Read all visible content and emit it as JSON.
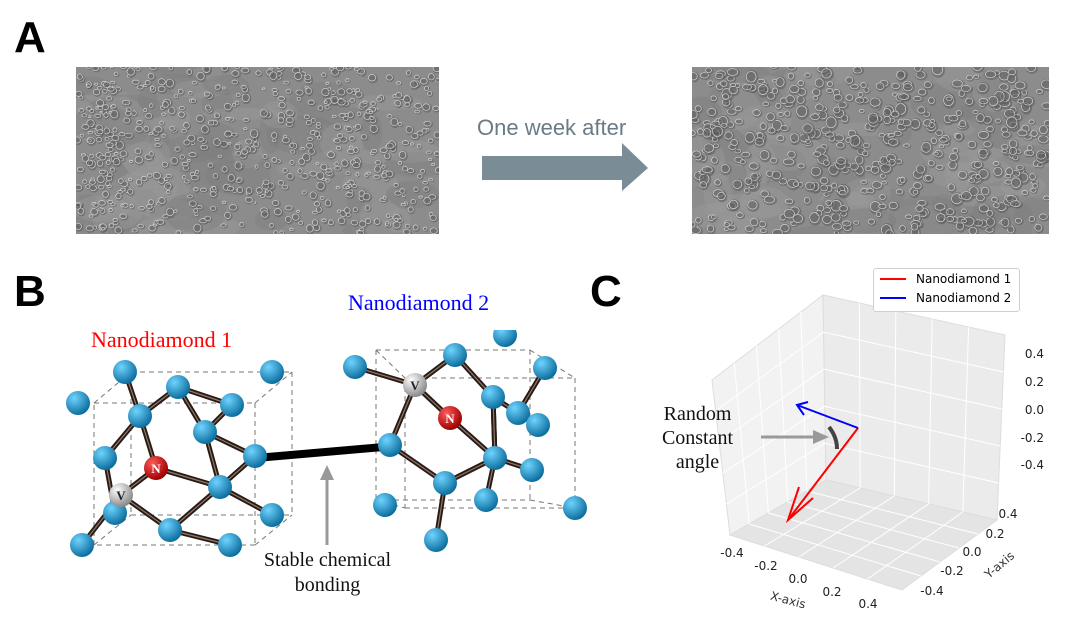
{
  "panels": {
    "a": "A",
    "b": "B",
    "c": "C"
  },
  "panel_a": {
    "arrow_label": "One week after"
  },
  "panel_b": {
    "nd1_label": "Nanodiamond 1",
    "nd2_label": "Nanodiamond 2",
    "bond_note_line1": "Stable chemical",
    "bond_note_line2": "bonding",
    "atom_n": "N",
    "atom_v": "V"
  },
  "panel_c": {
    "angle_note_line1": "Random",
    "angle_note_line2": "Constant",
    "angle_note_line3": "angle",
    "legend": [
      {
        "name": "Nanodiamond 1",
        "color": "#ff0000"
      },
      {
        "name": "Nanodiamond 2",
        "color": "#0000ff"
      }
    ],
    "x_axis_label": "X-axis",
    "y_axis_label": "Y-axis",
    "x_ticks": [
      "-0.4",
      "-0.2",
      "0.0",
      "0.2",
      "0.4"
    ],
    "y_ticks": [
      "0.4",
      "0.2",
      "0.0",
      "-0.2",
      "-0.4"
    ],
    "z_ticks": [
      "0.4",
      "0.2",
      "0.0",
      "-0.2",
      "-0.4"
    ]
  },
  "colors": {
    "nd1": "#ff0000",
    "nd2": "#0000ff",
    "arrow": "#7a8d97",
    "atom": "#1a8fc4"
  }
}
